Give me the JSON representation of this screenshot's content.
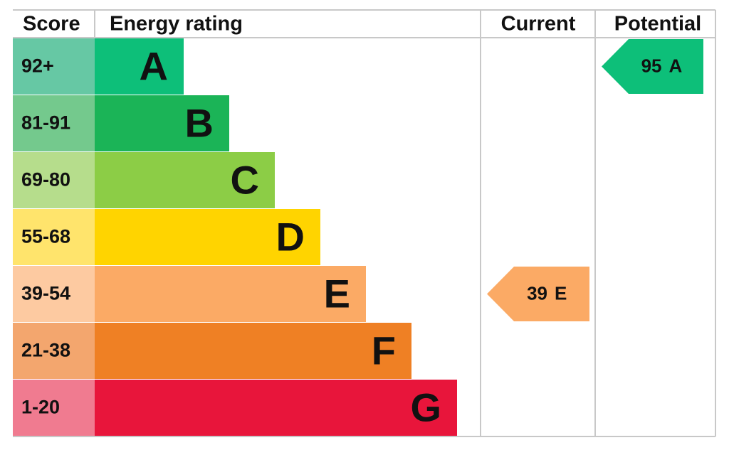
{
  "header": {
    "score": "Score",
    "rating": "Energy rating",
    "current": "Current",
    "potential": "Potential"
  },
  "bands": [
    {
      "score": "92+",
      "letter": "A",
      "color": "#0dbf79",
      "light": "#66c8a4"
    },
    {
      "score": "81-91",
      "letter": "B",
      "color": "#1bb457",
      "light": "#74c98d"
    },
    {
      "score": "69-80",
      "letter": "C",
      "color": "#8ccd46",
      "light": "#b6dd8c"
    },
    {
      "score": "55-68",
      "letter": "D",
      "color": "#ffd400",
      "light": "#ffe46c"
    },
    {
      "score": "39-54",
      "letter": "E",
      "color": "#fbaa65",
      "light": "#fdcaa1"
    },
    {
      "score": "21-38",
      "letter": "F",
      "color": "#ef8024",
      "light": "#f3a66e"
    },
    {
      "score": "1-20",
      "letter": "G",
      "color": "#e8153b",
      "light": "#f07b90"
    }
  ],
  "current": {
    "value": 39,
    "rating": "E"
  },
  "potential": {
    "value": 95,
    "rating": "A"
  }
}
